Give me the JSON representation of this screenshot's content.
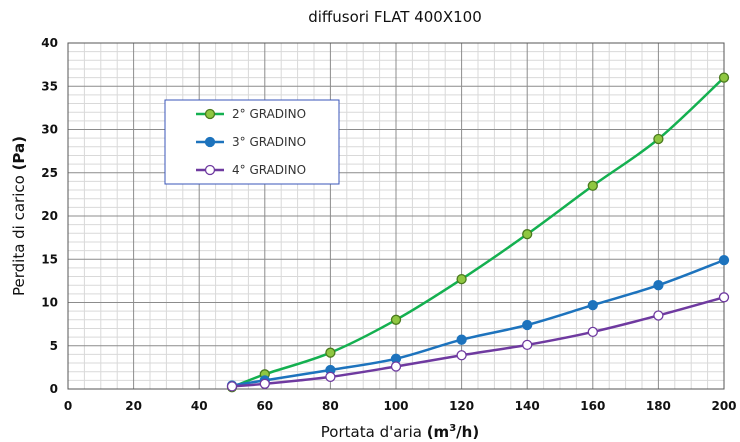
{
  "chart_data": {
    "type": "line",
    "title": "diffusori FLAT 400X100",
    "xlabel": {
      "prefix": "Portata d'aria ",
      "unit_base": "(m",
      "unit_sup": "3",
      "unit_suffix": "/h)"
    },
    "ylabel": {
      "prefix": "Perdita di carico ",
      "unit": "(Pa)"
    },
    "xlim": [
      0,
      200
    ],
    "ylim": [
      0,
      40
    ],
    "x_ticks": [
      0,
      20,
      40,
      60,
      80,
      100,
      120,
      140,
      160,
      180,
      200
    ],
    "y_ticks": [
      0,
      5,
      10,
      15,
      20,
      25,
      30,
      35,
      40
    ],
    "grid": true,
    "legend_position": "upper-left",
    "series": [
      {
        "name": "2° GRADINO",
        "color": "#14b050",
        "marker_fill": "#8fc741",
        "x": [
          50,
          60,
          80,
          100,
          120,
          140,
          160,
          180,
          200
        ],
        "y": [
          0.2,
          1.7,
          4.2,
          8.0,
          12.7,
          17.9,
          23.5,
          28.9,
          36.0
        ]
      },
      {
        "name": "3° GRADINO",
        "color": "#1d73bd",
        "marker_fill": "#1d73bd",
        "x": [
          50,
          60,
          80,
          100,
          120,
          140,
          160,
          180,
          200
        ],
        "y": [
          0.4,
          1.0,
          2.2,
          3.5,
          5.7,
          7.4,
          9.7,
          12.0,
          14.9
        ]
      },
      {
        "name": "4° GRADINO",
        "color": "#6f3aa0",
        "marker_fill": "#ffffff",
        "x": [
          50,
          60,
          80,
          100,
          120,
          140,
          160,
          180,
          200
        ],
        "y": [
          0.3,
          0.6,
          1.4,
          2.6,
          3.9,
          5.1,
          6.6,
          8.5,
          10.6
        ]
      }
    ]
  }
}
